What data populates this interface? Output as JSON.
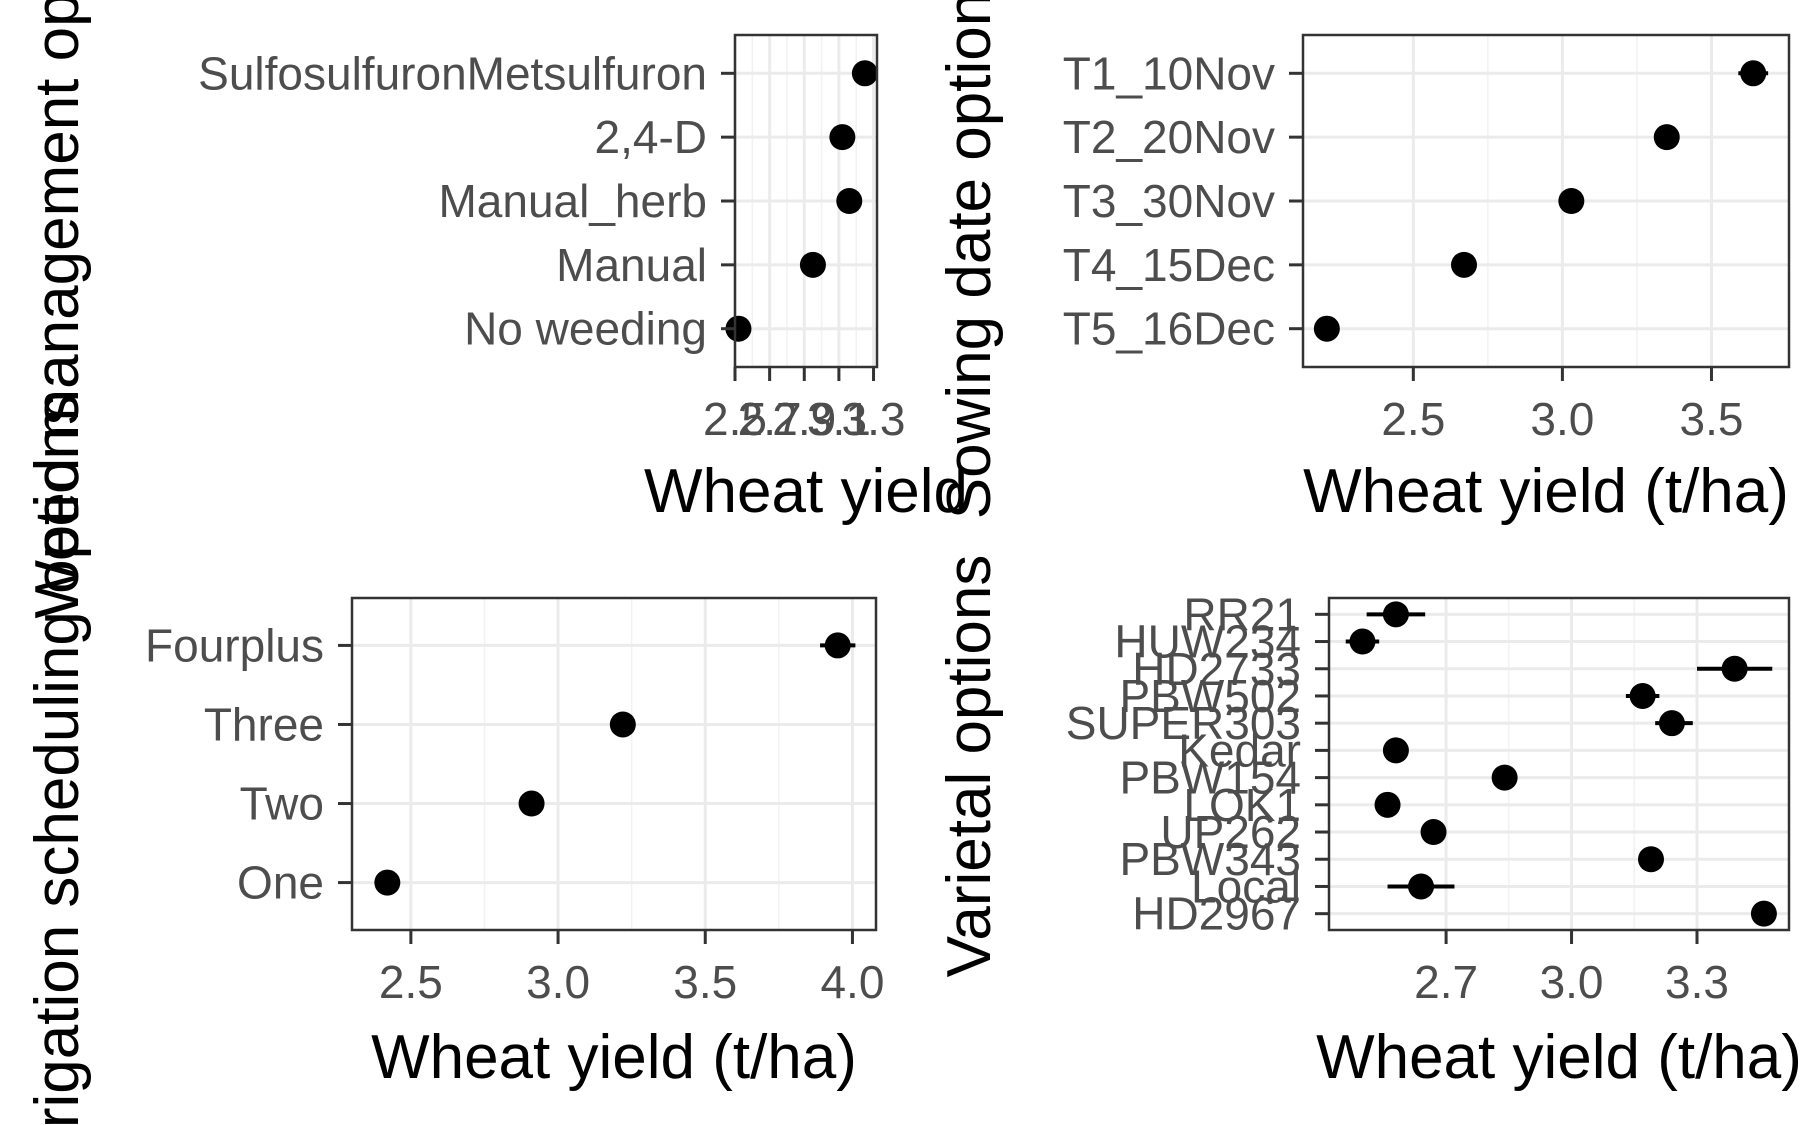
{
  "chart_data": [
    {
      "type": "scatter",
      "panel": "weed-management",
      "xlabel": "Wheat yield",
      "ylabel": "Weed management options",
      "x_ticks": [
        "2.5",
        "2.7",
        "2.9",
        "3.1",
        "3.3"
      ],
      "xlim": [
        2.5,
        3.32
      ],
      "categories": [
        "SulfosulfuronMetsulfuron",
        "2,4-D",
        "Manual_herb",
        "Manual",
        "No weeding"
      ],
      "values": [
        3.25,
        3.12,
        3.16,
        2.95,
        2.52
      ],
      "err_low": [
        3.22,
        3.11,
        3.15,
        2.94,
        2.51
      ],
      "err_high": [
        3.27,
        3.13,
        3.17,
        2.96,
        2.53
      ],
      "grid": true,
      "legend": "none"
    },
    {
      "type": "scatter",
      "panel": "sowing-date",
      "xlabel": "Wheat yield (t/ha)",
      "ylabel": "Sowing date options",
      "x_ticks": [
        "2.5",
        "3.0",
        "3.5"
      ],
      "xlim": [
        2.13,
        3.76
      ],
      "categories": [
        "T1_10Nov",
        "T2_20Nov",
        "T3_30Nov",
        "T4_15Dec",
        "T5_16Dec"
      ],
      "values": [
        3.64,
        3.35,
        3.03,
        2.67,
        2.21
      ],
      "err_low": [
        3.59,
        3.34,
        3.02,
        2.66,
        2.2
      ],
      "err_high": [
        3.69,
        3.36,
        3.04,
        2.68,
        2.22
      ],
      "grid": true,
      "legend": "none"
    },
    {
      "type": "scatter",
      "panel": "irrigation-scheduling",
      "xlabel": "Wheat yield (t/ha)",
      "ylabel": "Irrigation scheduling options",
      "x_ticks": [
        "2.5",
        "3.0",
        "3.5",
        "4.0"
      ],
      "xlim": [
        2.3,
        4.08
      ],
      "categories": [
        "Fourplus",
        "Three",
        "Two",
        "One"
      ],
      "values": [
        3.95,
        3.22,
        2.91,
        2.42
      ],
      "err_low": [
        3.89,
        3.21,
        2.9,
        2.41
      ],
      "err_high": [
        4.01,
        3.23,
        2.92,
        2.43
      ],
      "grid": true,
      "legend": "none"
    },
    {
      "type": "scatter",
      "panel": "varietal",
      "xlabel": "Wheat yield (t/ha)",
      "ylabel": "Varietal options",
      "x_ticks": [
        "2.7",
        "3.0",
        "3.3"
      ],
      "xlim": [
        2.42,
        3.52
      ],
      "categories": [
        "RR21",
        "HUW234",
        "HD2733",
        "PBW502",
        "SUPER303",
        "Kedar",
        "PBW154",
        "LOK1",
        "UP262",
        "PBW343",
        "Local",
        "HD2967"
      ],
      "values": [
        2.58,
        2.5,
        3.39,
        3.17,
        3.24,
        2.58,
        2.84,
        2.56,
        2.67,
        3.19,
        2.64,
        3.46
      ],
      "err_low": [
        2.51,
        2.46,
        3.3,
        3.13,
        3.2,
        2.55,
        2.82,
        2.53,
        2.66,
        3.18,
        2.56,
        3.45
      ],
      "err_high": [
        2.65,
        2.54,
        3.48,
        3.21,
        3.29,
        2.61,
        2.86,
        2.59,
        2.68,
        3.2,
        2.72,
        3.47
      ],
      "grid": true,
      "legend": "none"
    }
  ]
}
